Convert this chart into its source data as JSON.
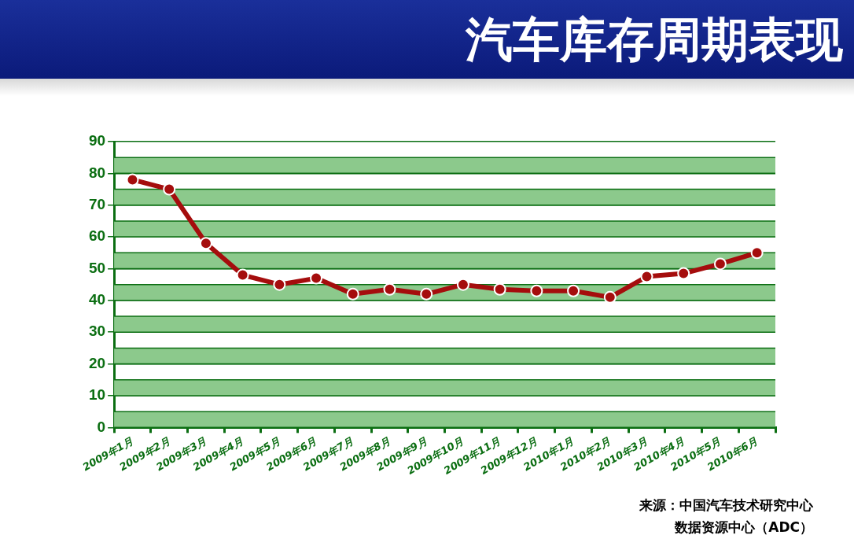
{
  "chart_data": {
    "type": "line",
    "title": "汽车库存周期表现",
    "categories": [
      "2009年1月",
      "2009年2月",
      "2009年3月",
      "2009年4月",
      "2009年5月",
      "2009年6月",
      "2009年7月",
      "2009年8月",
      "2009年9月",
      "2009年10月",
      "2009年11月",
      "2009年12月",
      "2010年1月",
      "2010年2月",
      "2010年3月",
      "2010年4月",
      "2010年5月",
      "2010年6月"
    ],
    "series": [
      {
        "color": "#a50d0d",
        "values": [
          78,
          75,
          58,
          48,
          45,
          47,
          42,
          43.5,
          42,
          45,
          43.5,
          43,
          43,
          41,
          47.5,
          48.5,
          51.5,
          55
        ]
      }
    ],
    "ylim": [
      0,
      90
    ],
    "yticks": [
      0,
      10,
      20,
      30,
      40,
      50,
      60,
      70,
      80,
      90
    ],
    "grid": true,
    "legend": false,
    "marker": "circle",
    "line_style": "solid",
    "bands": [
      {
        "axis": "y",
        "from": 0,
        "to": 5,
        "color": "#8cc98c"
      },
      {
        "axis": "y",
        "from": 10,
        "to": 15,
        "color": "#8cc98c"
      },
      {
        "axis": "y",
        "from": 20,
        "to": 25,
        "color": "#8cc98c"
      },
      {
        "axis": "y",
        "from": 30,
        "to": 35,
        "color": "#8cc98c"
      },
      {
        "axis": "y",
        "from": 40,
        "to": 45,
        "color": "#8cc98c"
      },
      {
        "axis": "y",
        "from": 50,
        "to": 55,
        "color": "#8cc98c"
      },
      {
        "axis": "y",
        "from": 60,
        "to": 65,
        "color": "#8cc98c"
      },
      {
        "axis": "y",
        "from": 70,
        "to": 75,
        "color": "#8cc98c"
      },
      {
        "axis": "y",
        "from": 80,
        "to": 85,
        "color": "#8cc98c"
      }
    ],
    "annotations": [
      "来源：中国汽车技术研究中心",
      "数据资源中心（ADC）"
    ]
  }
}
